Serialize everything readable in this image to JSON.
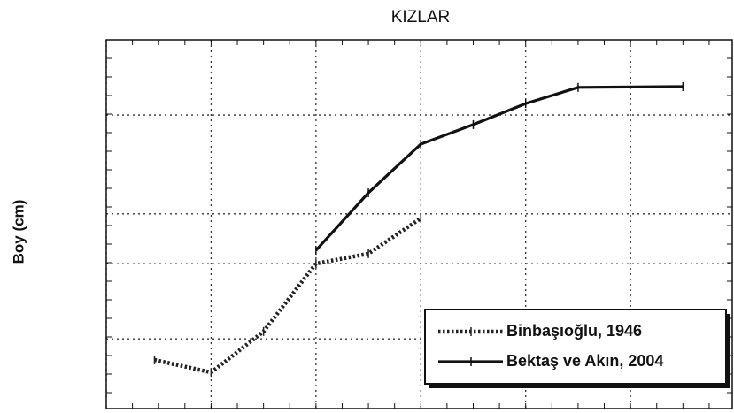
{
  "chart_data": {
    "type": "line",
    "title": "KIZLAR",
    "ylabel": "Boy (cm)",
    "xlim": [
      0,
      5.97
    ],
    "xticks": [
      0,
      1,
      2,
      3,
      4,
      5
    ],
    "ylim": [
      0,
      100
    ],
    "yticks": [
      18.9,
      39.3,
      52.8,
      79.6
    ],
    "grid": true,
    "legend": "lower right",
    "series": [
      {
        "name": "Binbaşıoğlu, 1946",
        "color": "#222222",
        "style": "dotted",
        "x": [
          0.46,
          1,
          1.5,
          2,
          2.5,
          3
        ],
        "values": [
          13.2,
          9.8,
          20.9,
          39.3,
          42.0,
          51.6
        ]
      },
      {
        "name": "Bektaş ve Akın, 2004",
        "color": "#111111",
        "style": "solid",
        "x": [
          2,
          2.5,
          3,
          3.5,
          4,
          4.5,
          5.5
        ],
        "values": [
          42.9,
          58.5,
          71.7,
          77.0,
          82.7,
          87.1,
          87.3
        ]
      }
    ]
  }
}
